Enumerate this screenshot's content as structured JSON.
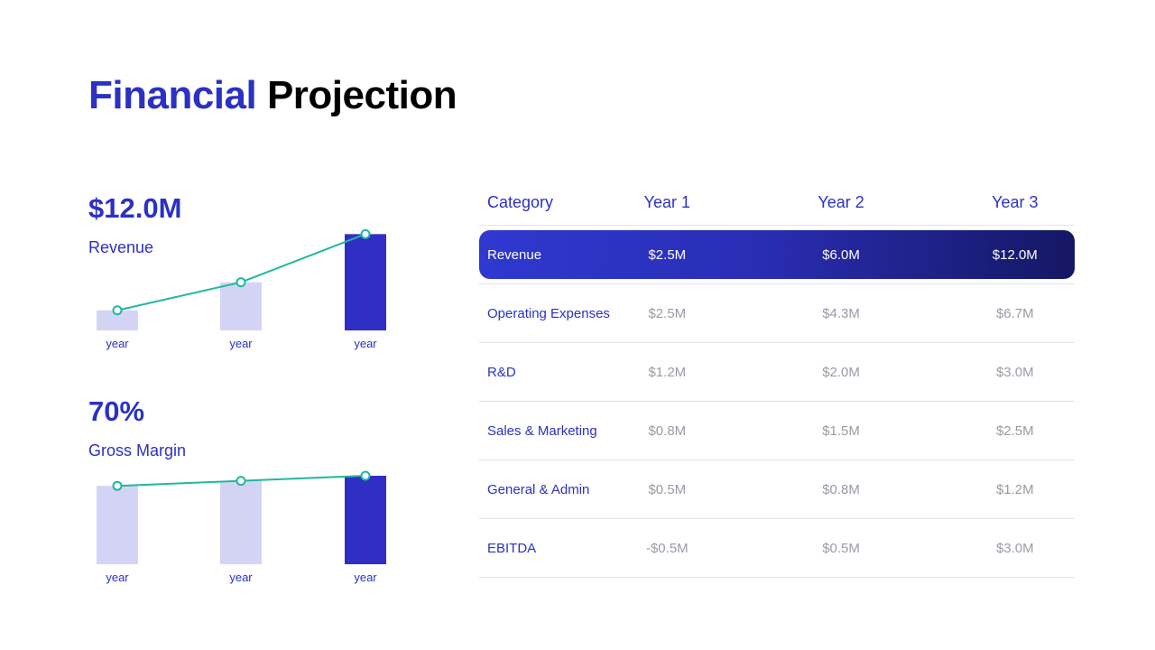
{
  "title": {
    "part1": "Financial",
    "part2": "Projection"
  },
  "colors": {
    "accent": "#2b31c4",
    "bar_light": "#d3d4f5",
    "bar_dark": "#2f2fc6",
    "line": "#1fb89c"
  },
  "metrics": [
    {
      "value": "$12.0M",
      "label": "Revenue"
    },
    {
      "value": "70%",
      "label": "Gross Margin"
    }
  ],
  "chart_data": [
    {
      "type": "bar",
      "categories": [
        "year",
        "year",
        "year"
      ],
      "values": [
        2.5,
        6.0,
        12.0
      ],
      "line_values": [
        2.5,
        6.0,
        12.0
      ],
      "ylim": [
        0,
        12.6
      ]
    },
    {
      "type": "bar",
      "categories": [
        "year",
        "year",
        "year"
      ],
      "values": [
        62,
        66,
        70
      ],
      "line_values": [
        62,
        66,
        70
      ],
      "ylim": [
        0,
        70
      ]
    }
  ],
  "table": {
    "headers": [
      "Category",
      "Year 1",
      "Year 2",
      "Year 3"
    ],
    "rows": [
      [
        "Revenue",
        "$2.5M",
        "$6.0M",
        "$12.0M"
      ],
      [
        "Operating Expenses",
        "$2.5M",
        "$4.3M",
        "$6.7M"
      ],
      [
        "R&D",
        "$1.2M",
        "$2.0M",
        "$3.0M"
      ],
      [
        "Sales & Marketing",
        "$0.8M",
        "$1.5M",
        "$2.5M"
      ],
      [
        "General & Admin",
        "$0.5M",
        "$0.8M",
        "$1.2M"
      ],
      [
        "EBITDA",
        "-$0.5M",
        "$0.5M",
        "$3.0M"
      ]
    ]
  }
}
